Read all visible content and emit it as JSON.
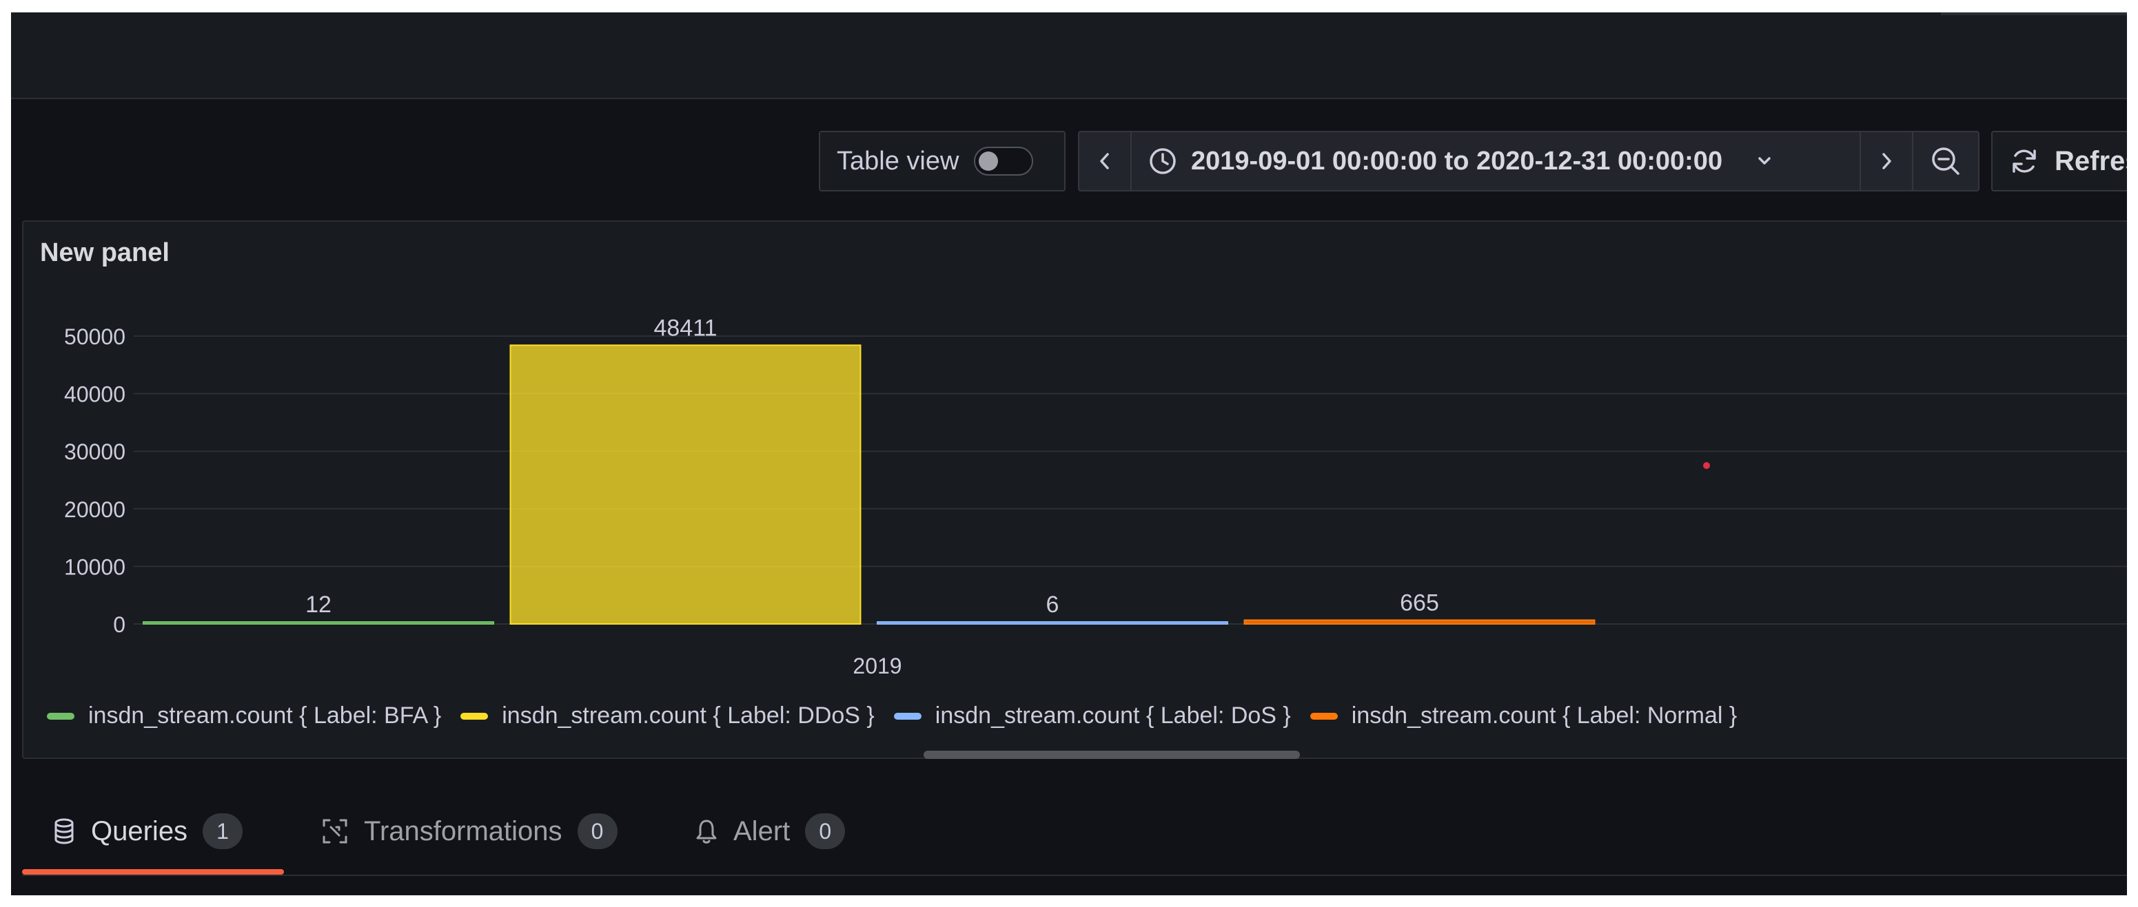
{
  "toolbar": {
    "table_view_label": "Table view",
    "time_range": "2019-09-01 00:00:00 to 2020-12-31 00:00:00",
    "refresh_label": "Refresh",
    "icons": {
      "prev": "chevron-left-icon",
      "clock": "clock-icon",
      "dropdown": "chevron-down-icon",
      "next": "chevron-right-icon",
      "zoom_out": "zoom-out-icon",
      "refresh": "refresh-icon"
    }
  },
  "panel": {
    "title": "New panel"
  },
  "chart_data": {
    "type": "bar",
    "categories": [
      "2019"
    ],
    "series": [
      {
        "name": "insdn_stream.count { Label: BFA }",
        "values": [
          12
        ],
        "color": "#73bf69"
      },
      {
        "name": "insdn_stream.count { Label: DDoS }",
        "values": [
          48411
        ],
        "color": "#fade2a"
      },
      {
        "name": "insdn_stream.count { Label: DoS }",
        "values": [
          6
        ],
        "color": "#8ab8ff"
      },
      {
        "name": "insdn_stream.count { Label: Normal }",
        "values": [
          665
        ],
        "color": "#ff780a"
      }
    ],
    "y_ticks": [
      "0",
      "10000",
      "20000",
      "30000",
      "40000",
      "50000"
    ],
    "ylim": [
      0,
      50000
    ],
    "grid": true,
    "legend_placement": "bottom-left",
    "title": "New panel",
    "xlabel": "",
    "ylabel": ""
  },
  "tabs": [
    {
      "label": "Queries",
      "count": "1",
      "icon": "database-icon",
      "active": true
    },
    {
      "label": "Transformations",
      "count": "0",
      "icon": "transform-icon",
      "active": false
    },
    {
      "label": "Alert",
      "count": "0",
      "icon": "bell-icon",
      "active": false
    }
  ]
}
